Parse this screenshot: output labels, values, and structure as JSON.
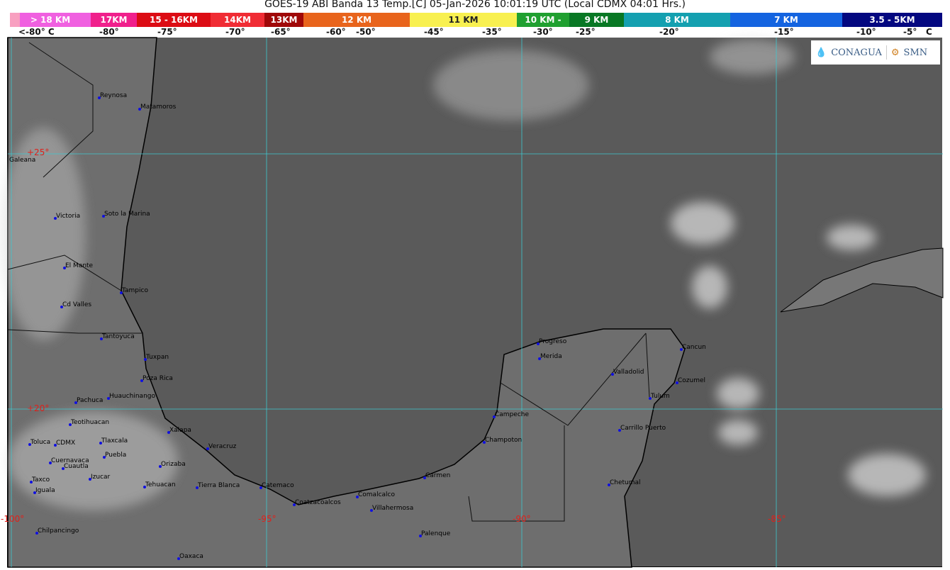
{
  "title": "GOES-19 ABI Banda 13 Temp.[C] 05-Jan-2026 10:01:19 UTC (Local CDMX  04:01 Hrs.)",
  "legend": [
    {
      "label": "> 18 KM",
      "color": "#f060e0"
    },
    {
      "label": "17KM",
      "color": "#f0208c"
    },
    {
      "label": "15 - 16KM",
      "color": "#dc0c14"
    },
    {
      "label": "14KM",
      "color": "#f02c34"
    },
    {
      "label": "13KM",
      "color": "#a00808"
    },
    {
      "label": "12 KM",
      "color": "#e8641c"
    },
    {
      "label": "11 KM",
      "color": "#f8f050"
    },
    {
      "label": "10 KM -",
      "color": "#20a030"
    },
    {
      "label": "9 KM",
      "color": "#087824"
    },
    {
      "label": "8 KM",
      "color": "#14a0b0"
    },
    {
      "label": "7 KM",
      "color": "#1464e0"
    },
    {
      "label": "3.5 - 5KM",
      "color": "#040880"
    }
  ],
  "temperatures": [
    "<-80° C",
    "-80°",
    "-75°",
    "-70°",
    "-65°",
    "-60°",
    "-50°",
    "-45°",
    "-35°",
    "-30°",
    "-25°",
    "-20°",
    "-15°",
    "-10°",
    "-5°",
    "C"
  ],
  "grid_labels": {
    "lat": [
      "+25°",
      "+20°"
    ],
    "lon": [
      "-100°",
      "-95°",
      "-90°",
      "-85°"
    ]
  },
  "logos": {
    "conagua": "CONAGUA",
    "smn": "SMN"
  },
  "cities": [
    "Reynosa",
    "Matamoros",
    "Galeana",
    "Victoria",
    "Soto la Marina",
    "El Mante",
    "Tampico",
    "Cd Valles",
    "Tantoyuca",
    "Tuxpan",
    "Poza Rica",
    "Pachuca",
    "Huauchinango",
    "Teotihuacan",
    "Toluca",
    "CDMX",
    "Tlaxcala",
    "Puebla",
    "Cuernavaca",
    "Cuautla",
    "Izucar",
    "Taxco",
    "Iguala",
    "Chilpancingo",
    "Xalapa",
    "Veracruz",
    "Orizaba",
    "Tehuacan",
    "Tierra Blanca",
    "Catemaco",
    "Coatzacoalcos",
    "Comalcalco",
    "Villahermosa",
    "Carmen",
    "Palenque",
    "Oaxaca",
    "Champoton",
    "Campeche",
    "Progreso",
    "Merida",
    "Valladolid",
    "Cancun",
    "Cozumel",
    "Tulum",
    "Carrillo Puerto",
    "Chetumal"
  ]
}
